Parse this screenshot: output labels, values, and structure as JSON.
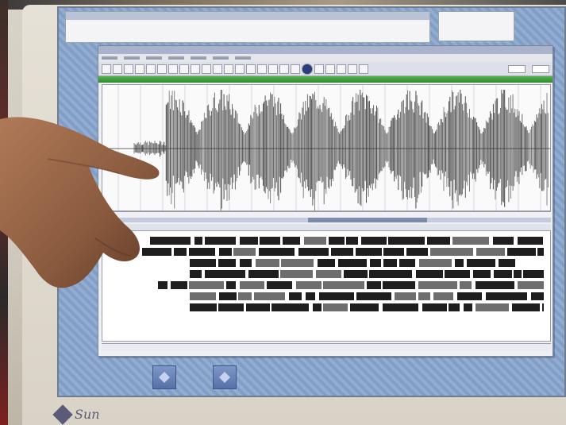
{
  "photo": {
    "subject": "",
    "logo_text": "Sun"
  },
  "app": {
    "menus": [
      "",
      "",
      "",
      "",
      "",
      "",
      ""
    ],
    "toolbar_buttons": 24
  },
  "colors": {
    "screen": "#8aa6cf",
    "green_bar": "#3a9a36",
    "waveform": "#3a3a3a",
    "skin": "#8a5a3e"
  }
}
